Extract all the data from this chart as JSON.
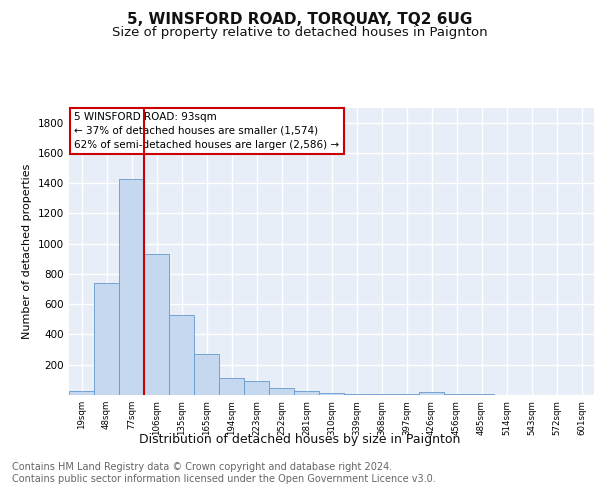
{
  "title": "5, WINSFORD ROAD, TORQUAY, TQ2 6UG",
  "subtitle": "Size of property relative to detached houses in Paignton",
  "xlabel": "Distribution of detached houses by size in Paignton",
  "ylabel": "Number of detached properties",
  "bin_labels": [
    "19sqm",
    "48sqm",
    "77sqm",
    "106sqm",
    "135sqm",
    "165sqm",
    "194sqm",
    "223sqm",
    "252sqm",
    "281sqm",
    "310sqm",
    "339sqm",
    "368sqm",
    "397sqm",
    "426sqm",
    "456sqm",
    "485sqm",
    "514sqm",
    "543sqm",
    "572sqm",
    "601sqm"
  ],
  "bar_heights": [
    25,
    740,
    1430,
    935,
    530,
    270,
    110,
    95,
    45,
    25,
    15,
    5,
    5,
    5,
    20,
    5,
    5,
    0,
    0,
    0,
    0
  ],
  "bar_color": "#c5d8f0",
  "bar_edge_color": "#6699cc",
  "vline_x_idx": 3,
  "vline_color": "#cc0000",
  "annotation_line1": "5 WINSFORD ROAD: 93sqm",
  "annotation_line2": "← 37% of detached houses are smaller (1,574)",
  "annotation_line3": "62% of semi-detached houses are larger (2,586) →",
  "annotation_box_color": "#ffffff",
  "annotation_box_edge_color": "#cc0000",
  "ylim": [
    0,
    1900
  ],
  "yticks": [
    0,
    200,
    400,
    600,
    800,
    1000,
    1200,
    1400,
    1600,
    1800
  ],
  "background_color": "#e8eef8",
  "grid_color": "#ffffff",
  "footer_text": "Contains HM Land Registry data © Crown copyright and database right 2024.\nContains public sector information licensed under the Open Government Licence v3.0.",
  "title_fontsize": 11,
  "subtitle_fontsize": 9.5,
  "xlabel_fontsize": 9,
  "ylabel_fontsize": 8,
  "footer_fontsize": 7
}
